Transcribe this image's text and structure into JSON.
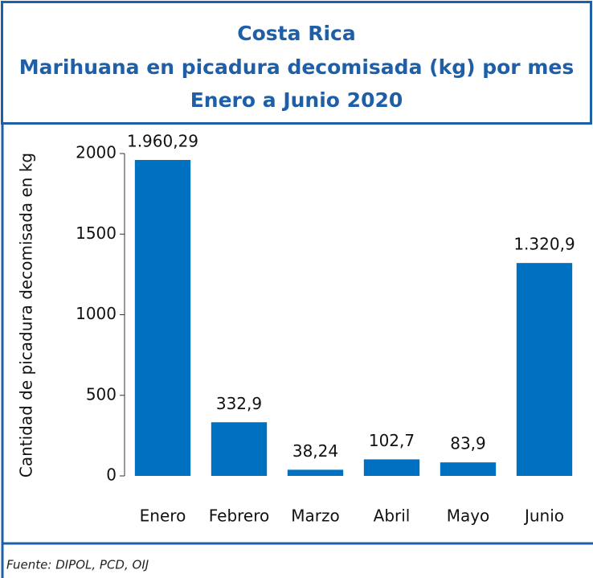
{
  "chart_data": {
    "type": "bar",
    "title": "Costa Rica",
    "subtitle": [
      "Marihuana en picadura decomisada (kg) por mes",
      "Enero a Junio 2020"
    ],
    "y_label": "Cantidad de picadura decomisada en kg",
    "categories": [
      "Enero",
      "Febrero",
      "Marzo",
      "Abril",
      "Mayo",
      "Junio"
    ],
    "values": [
      1960.29,
      332.9,
      38.24,
      102.7,
      83.9,
      1320.9
    ],
    "value_labels": [
      "1.960,29",
      "332,9",
      "38,24",
      "102,7",
      "83,9",
      "1.320,9"
    ],
    "color": "#0070c0",
    "ylim": [
      0,
      2000
    ],
    "yticks": [
      0,
      500,
      1000,
      1500,
      2000
    ],
    "grid": false,
    "source": "Fuente: DIPOL, PCD, OIJ"
  }
}
